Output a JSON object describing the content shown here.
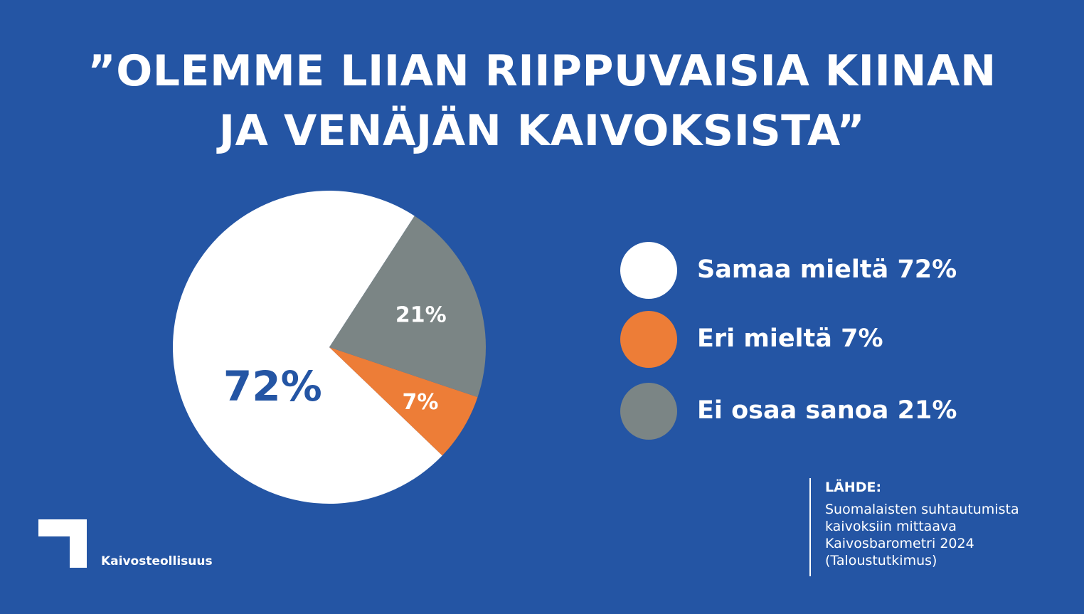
{
  "title_lines": [
    "”OLEMME LIIAN RIIPPUVAISIA KIINAN",
    "JA VENÄJÄN KAIVOKSISTA”"
  ],
  "chart_data": {
    "type": "pie",
    "title": "”OLEMME LIIAN RIIPPUVAISIA KIINAN JA VENÄJÄN KAIVOKSISTA”",
    "categories": [
      "Samaa mieltä",
      "Eri mieltä",
      "Ei osaa sanoa"
    ],
    "values": [
      72,
      7,
      21
    ],
    "unit": "%",
    "slices": [
      {
        "legend_label": "Samaa mieltä 72%",
        "value": 72,
        "data_label": "72%",
        "color": "#ffffff",
        "label_color": "#2455a4"
      },
      {
        "legend_label": "Eri mieltä 7%",
        "value": 7,
        "data_label": "7%",
        "color": "#ed7d37",
        "label_color": "#ffffff"
      },
      {
        "legend_label": "Ei osaa sanoa 21%",
        "value": 21,
        "data_label": "21%",
        "color": "#7b8585",
        "label_color": "#ffffff"
      }
    ],
    "legend_position": "right"
  },
  "source": {
    "heading": "LÄHDE:",
    "lines": [
      "Suomalaisten suhtautumista",
      "kaivoksiin mittaava",
      "Kaivosbarometri 2024",
      "(Taloustutkimus)"
    ]
  },
  "logo": {
    "icon": "kaivosteollisuus-logo-icon",
    "text": "Kaivosteollisuus"
  },
  "colors": {
    "background": "#2455a4",
    "text": "#ffffff"
  }
}
